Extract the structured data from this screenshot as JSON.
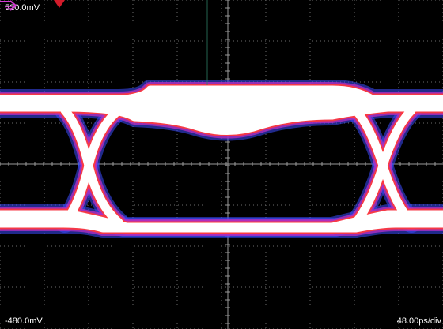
{
  "scope": {
    "vertical_top_label": "520.0mV",
    "vertical_bottom_label": "-480.0mV",
    "timebase_label": "48.00ps/div",
    "trace_color": "#ffffff",
    "halo_colors": [
      "#ff3b3b",
      "#b22ec0",
      "#3c4cff"
    ],
    "grid_color": "#6b6b6b",
    "trigger_marker_color": "#d21b2a",
    "ground_marker_color": "#d23ad2"
  },
  "icons": {
    "trigger": "trigger-marker-icon",
    "ground": "ground-reference-icon"
  }
}
